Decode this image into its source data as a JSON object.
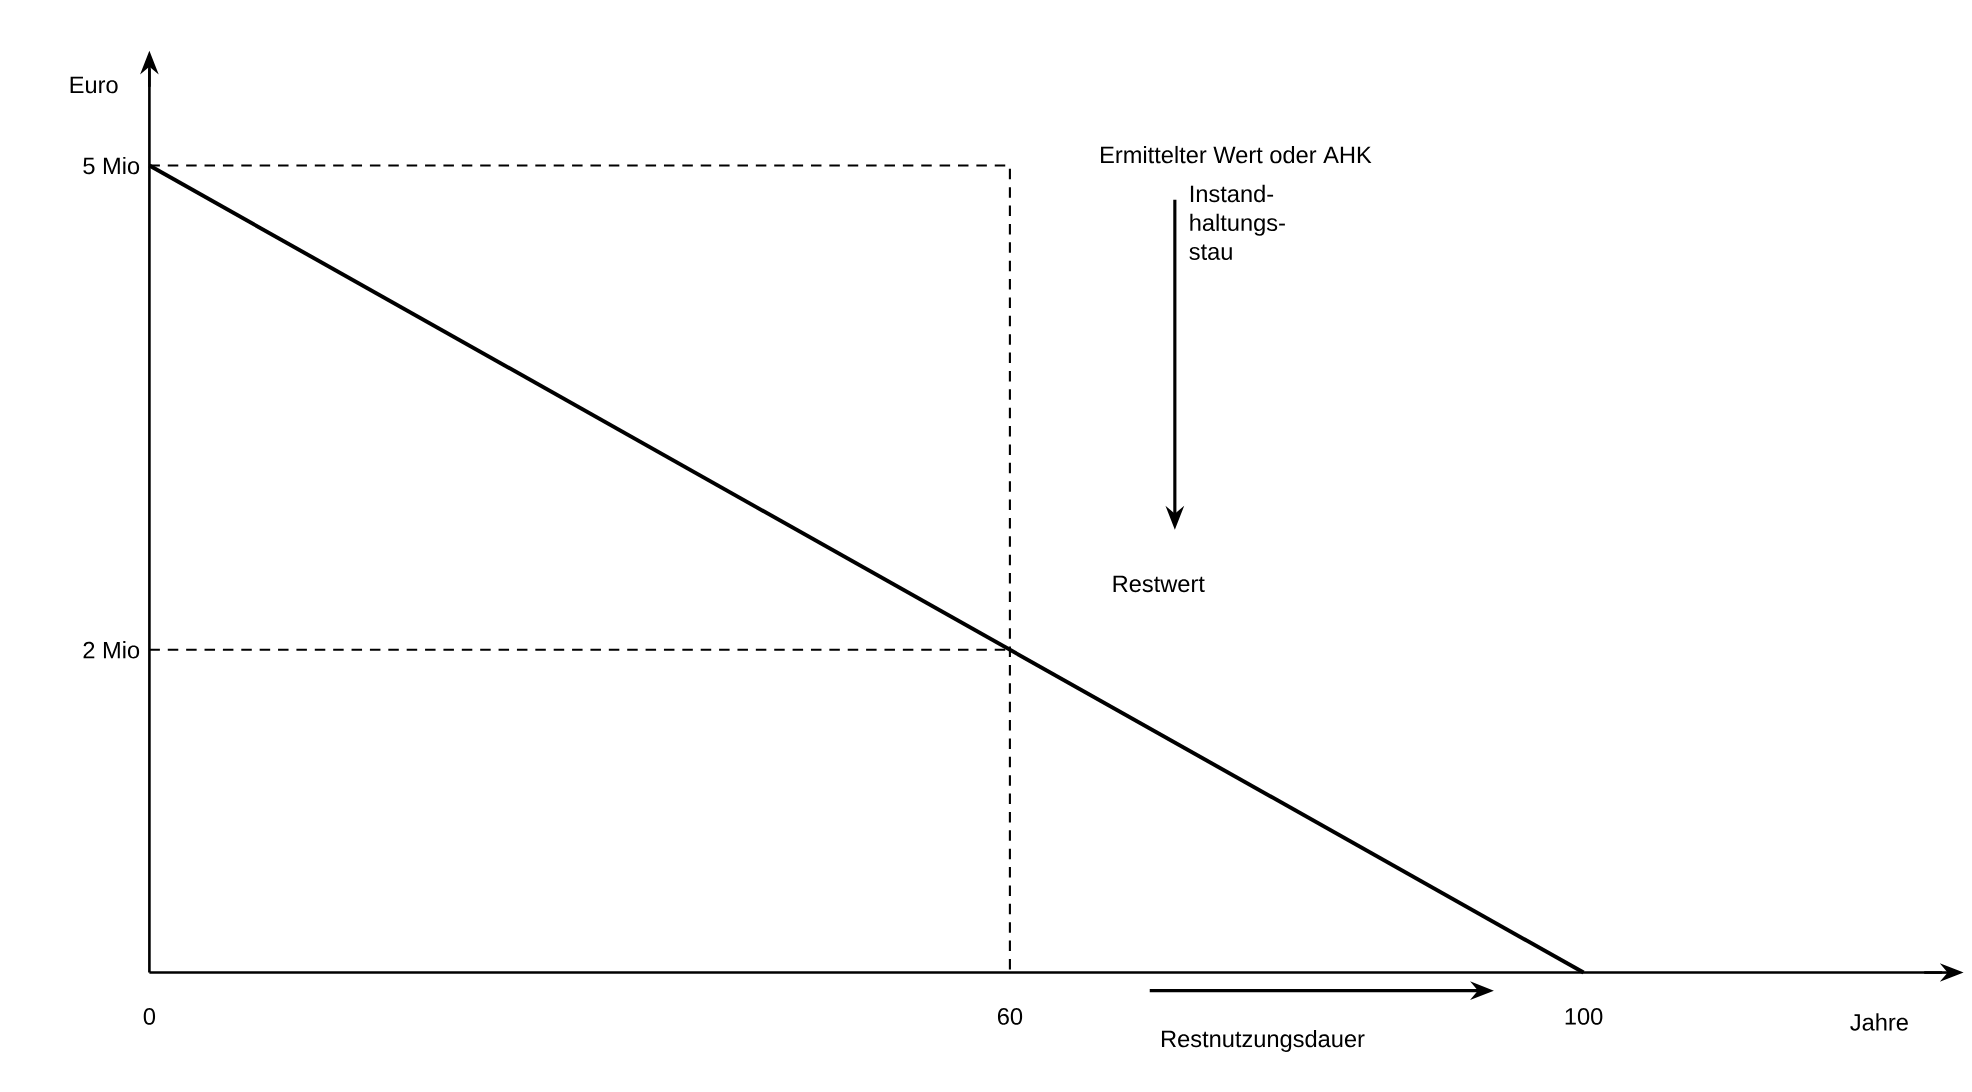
{
  "chart_data": {
    "type": "line",
    "xlabel": "Jahre",
    "ylabel": "Euro",
    "xlim": [
      0,
      125
    ],
    "ylim": [
      0,
      5.6
    ],
    "xticks": [
      0,
      60,
      100
    ],
    "yticks": [
      {
        "value": 2,
        "label": "2 Mio"
      },
      {
        "value": 5,
        "label": "5 Mio"
      }
    ],
    "marker": "none",
    "series": [
      {
        "x": [
          0,
          100
        ],
        "values": [
          5,
          0
        ],
        "color": "#000000",
        "line_style": "solid"
      },
      {
        "x": [
          0,
          60,
          60
        ],
        "values": [
          5,
          5,
          0
        ],
        "color": "#000000",
        "line_style": "dashed"
      },
      {
        "x": [
          0,
          60
        ],
        "values": [
          2,
          2
        ],
        "color": "#000000",
        "line_style": "dashed"
      }
    ],
    "annotations": [
      "Ermittelter Wert oder AHK",
      "Instand-haltungs-stau",
      "Restwert",
      "Restnutzungsdauer"
    ]
  }
}
